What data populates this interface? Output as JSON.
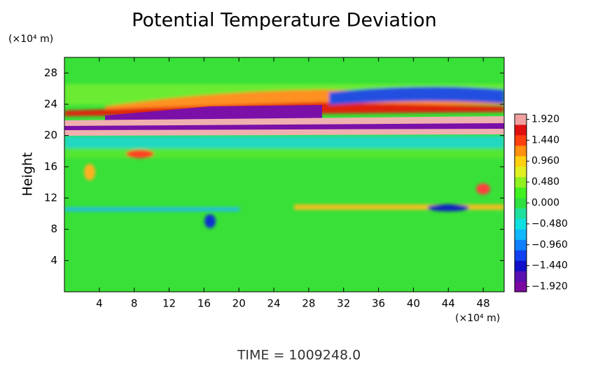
{
  "chart_data": {
    "type": "heatmap",
    "title": "Potential Temperature Deviation",
    "y_label": "Height",
    "y_unit": "(×10⁴ m)",
    "x_unit": "(×10⁴ m)",
    "footer": "TIME = 1009248.0",
    "xlim": [
      0,
      50.4
    ],
    "xticks": [
      4,
      8,
      12,
      16,
      20,
      24,
      28,
      32,
      36,
      40,
      44,
      48
    ],
    "ylim": [
      0,
      30
    ],
    "yticks": [
      4,
      8,
      12,
      16,
      20,
      24,
      28
    ],
    "zlim": [
      -2.04,
      2.04
    ],
    "zticks": [
      {
        "value": 1.92,
        "label": "1.920"
      },
      {
        "value": 1.44,
        "label": "1.440"
      },
      {
        "value": 0.96,
        "label": "0.960"
      },
      {
        "value": 0.48,
        "label": "0.480"
      },
      {
        "value": 0,
        "label": "0.000"
      },
      {
        "value": -0.48,
        "label": "−0.480"
      },
      {
        "value": -0.96,
        "label": "−0.960"
      },
      {
        "value": -1.44,
        "label": "−1.440"
      },
      {
        "value": -1.92,
        "label": "−1.920"
      }
    ],
    "colorscale": [
      "#7a0aa0",
      "#5a10b0",
      "#1010c8",
      "#1040f0",
      "#1080ff",
      "#10b8ff",
      "#10e0e0",
      "#20e0a0",
      "#30e040",
      "#40f020",
      "#90f020",
      "#e0f020",
      "#ffd010",
      "#ff9010",
      "#ff4010",
      "#e01010",
      "#f0a0a0"
    ]
  }
}
